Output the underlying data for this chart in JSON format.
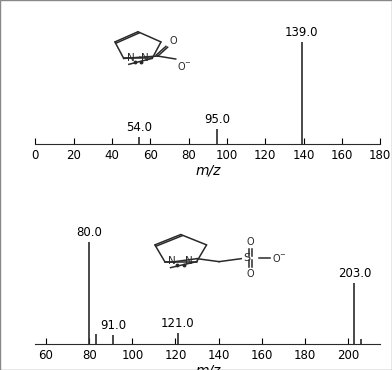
{
  "spectrum1": {
    "peaks": [
      {
        "mz": 54.0,
        "rel": 0.07,
        "label": "54.0"
      },
      {
        "mz": 95.0,
        "rel": 0.145,
        "label": "95.0"
      },
      {
        "mz": 139.0,
        "rel": 1.0,
        "label": "139.0"
      }
    ],
    "xlim": [
      0,
      180
    ],
    "xticks": [
      0,
      20,
      40,
      60,
      80,
      100,
      120,
      140,
      160,
      180
    ],
    "xlabel": "m/z"
  },
  "spectrum2": {
    "peaks": [
      {
        "mz": 80.0,
        "rel": 1.0,
        "label": "80.0"
      },
      {
        "mz": 83.0,
        "rel": 0.1,
        "label": ""
      },
      {
        "mz": 91.0,
        "rel": 0.09,
        "label": "91.0"
      },
      {
        "mz": 121.0,
        "rel": 0.11,
        "label": "121.0"
      },
      {
        "mz": 203.0,
        "rel": 0.6,
        "label": "203.0"
      },
      {
        "mz": 206.0,
        "rel": 0.05,
        "label": ""
      }
    ],
    "xlim": [
      55,
      215
    ],
    "xticks": [
      60,
      80,
      100,
      120,
      140,
      160,
      180,
      200
    ],
    "xlabel": "m/z"
  },
  "peak_color": "#2a2a2a",
  "line_width": 1.2,
  "ylim": [
    0,
    1.3
  ],
  "label_fontsize": 8.5,
  "tick_fontsize": 8.5,
  "xlabel_fontsize": 10,
  "figure_bg": "#ffffff"
}
